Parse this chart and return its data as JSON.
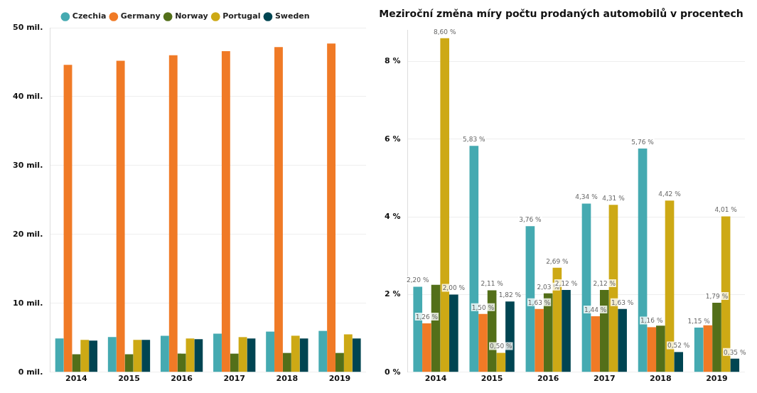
{
  "chart_data": [
    {
      "type": "bar",
      "categories": [
        "2014",
        "2015",
        "2016",
        "2017",
        "2018",
        "2019"
      ],
      "series": [
        {
          "name": "Czechia",
          "color": "#45aab1",
          "values": [
            4.9,
            5.1,
            5.3,
            5.6,
            5.9,
            6.0
          ]
        },
        {
          "name": "Germany",
          "color": "#f07a26",
          "values": [
            44.6,
            45.2,
            46.0,
            46.6,
            47.2,
            47.7
          ]
        },
        {
          "name": "Norway",
          "color": "#536f19",
          "values": [
            2.6,
            2.6,
            2.7,
            2.7,
            2.8,
            2.8
          ]
        },
        {
          "name": "Portugal",
          "color": "#cda915",
          "values": [
            4.7,
            4.7,
            4.9,
            5.1,
            5.3,
            5.5
          ]
        },
        {
          "name": "Sweden",
          "color": "#004552",
          "values": [
            4.6,
            4.7,
            4.8,
            4.9,
            4.9,
            4.9
          ]
        }
      ],
      "ylim": [
        0,
        50
      ],
      "yticks": [
        {
          "value": 0,
          "label": "0 mil."
        },
        {
          "value": 10,
          "label": "10 mil."
        },
        {
          "value": 20,
          "label": "20 mil."
        },
        {
          "value": 30,
          "label": "30 mil."
        },
        {
          "value": 40,
          "label": "40 mil."
        },
        {
          "value": 50,
          "label": "50 mil."
        }
      ],
      "grid": "y",
      "legend": "top"
    },
    {
      "type": "bar",
      "title": "Meziroční změna míry počtu prodaných automobilů v procentech",
      "categories": [
        "2014",
        "2015",
        "2016",
        "2017",
        "2018",
        "2019"
      ],
      "series": [
        {
          "color": "#45aab1",
          "values": [
            2.2,
            5.83,
            3.76,
            4.34,
            5.76,
            1.15
          ],
          "value_labels": [
            "2,20 %",
            "5,83 %",
            "3,76 %",
            "4,34 %",
            "5,76 %",
            "1,15 %"
          ]
        },
        {
          "color": "#f07a26",
          "values": [
            1.26,
            1.5,
            1.63,
            1.44,
            1.16,
            1.21
          ],
          "value_labels": [
            "1,26 %",
            "1,50 %",
            "1,63 %",
            "1,44 %",
            "1,16 %",
            null
          ]
        },
        {
          "color": "#536f19",
          "values": [
            2.25,
            2.11,
            2.03,
            2.12,
            1.2,
            1.79
          ],
          "value_labels": [
            null,
            "2,11 %",
            "2,03 %",
            "2,12 %",
            null,
            "1,79 %"
          ]
        },
        {
          "color": "#cda915",
          "values": [
            8.6,
            0.5,
            2.69,
            4.31,
            4.42,
            4.01
          ],
          "value_labels": [
            "8,60 %",
            "0,50 %",
            "2,69 %",
            "4,31 %",
            "4,42 %",
            "4,01 %"
          ]
        },
        {
          "color": "#004552",
          "values": [
            2.0,
            1.82,
            2.12,
            1.63,
            0.52,
            0.35
          ],
          "value_labels": [
            "2,00 %",
            "1,82 %",
            "2,12 %",
            "1,63 %",
            "0,52 %",
            "0,35 %"
          ]
        }
      ],
      "ylim": [
        0,
        8.8
      ],
      "yticks": [
        {
          "value": 0,
          "label": "0 %"
        },
        {
          "value": 2,
          "label": "2 %"
        },
        {
          "value": 4,
          "label": "4 %"
        },
        {
          "value": 6,
          "label": "6 %"
        },
        {
          "value": 8,
          "label": "8 %"
        }
      ],
      "grid": "y"
    }
  ]
}
